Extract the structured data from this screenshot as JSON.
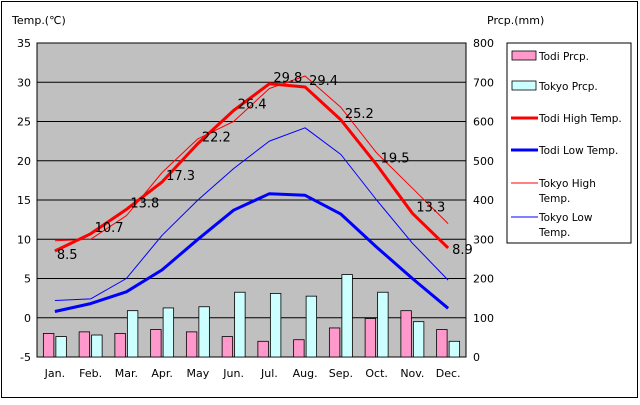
{
  "chart_data": {
    "type": "bar+line",
    "left_axis_label": "Temp.(℃)",
    "right_axis_label": "Prcp.(mm)",
    "categories": [
      "Jan.",
      "Feb.",
      "Mar.",
      "Apr.",
      "May",
      "Jun.",
      "Jul.",
      "Aug.",
      "Sep.",
      "Oct.",
      "Nov.",
      "Dec."
    ],
    "left_ylim": [
      -5,
      35
    ],
    "left_ticks": [
      "35",
      "30",
      "25",
      "20",
      "15",
      "10",
      "5",
      "0",
      "-5"
    ],
    "right_ylim": [
      0,
      800
    ],
    "right_ticks": [
      "800",
      "700",
      "600",
      "500",
      "400",
      "300",
      "200",
      "100",
      "0"
    ],
    "grid": "horizontal",
    "legend_position": "right",
    "series": [
      {
        "name": "Todi Prcp.",
        "kind": "bar",
        "axis": "right",
        "color": "#ff99cc",
        "values": [
          60,
          64,
          60,
          70,
          64,
          52,
          40,
          44,
          74,
          98,
          118,
          70
        ]
      },
      {
        "name": "Tokyo Prcp.",
        "kind": "bar",
        "axis": "right",
        "color": "#ccffff",
        "values": [
          52,
          56,
          118,
          125,
          128,
          165,
          162,
          155,
          210,
          165,
          90,
          40
        ]
      },
      {
        "name": "Todi High Temp.",
        "kind": "line",
        "axis": "left",
        "color": "#ff0000",
        "width": 3,
        "values": [
          8.5,
          10.7,
          13.8,
          17.3,
          22.2,
          26.4,
          29.8,
          29.4,
          25.2,
          19.5,
          13.3,
          8.9
        ]
      },
      {
        "name": "Todi Low Temp.",
        "kind": "line",
        "axis": "left",
        "color": "#0000ff",
        "width": 3,
        "values": [
          0.8,
          1.8,
          3.3,
          6.1,
          10.0,
          13.7,
          15.8,
          15.6,
          13.2,
          9.0,
          5.0,
          1.2
        ]
      },
      {
        "name": "Tokyo High Temp.",
        "kind": "line",
        "axis": "left",
        "color": "#ff0000",
        "width": 1,
        "values": [
          9.8,
          10.0,
          13.0,
          18.5,
          22.8,
          25.0,
          29.2,
          30.8,
          26.8,
          21.0,
          16.5,
          12.0
        ]
      },
      {
        "name": "Tokyo Low Temp.",
        "kind": "line",
        "axis": "left",
        "color": "#0000ff",
        "width": 1,
        "values": [
          2.2,
          2.4,
          5.0,
          10.5,
          15.0,
          19.0,
          22.5,
          24.2,
          20.8,
          15.0,
          9.5,
          4.8
        ]
      }
    ],
    "data_labels": {
      "series": "Todi High Temp.",
      "labels": [
        "8.5",
        "10.7",
        "13.8",
        "17.3",
        "22.2",
        "26.4",
        "29.8",
        "29.4",
        "25.2",
        "19.5",
        "13.3",
        "8.9"
      ]
    },
    "legend": [
      {
        "lines": [
          "Todi Prcp."
        ],
        "kind": "bar",
        "color": "#ff99cc"
      },
      {
        "lines": [
          "Tokyo Prcp."
        ],
        "kind": "bar",
        "color": "#ccffff"
      },
      {
        "lines": [
          "Todi High Temp."
        ],
        "kind": "line",
        "color": "#ff0000",
        "width": 3
      },
      {
        "lines": [
          "Todi Low Temp."
        ],
        "kind": "line",
        "color": "#0000ff",
        "width": 3
      },
      {
        "lines": [
          "Tokyo High",
          "Temp."
        ],
        "kind": "line",
        "color": "#ff0000",
        "width": 1
      },
      {
        "lines": [
          "Tokyo Low",
          "Temp."
        ],
        "kind": "line",
        "color": "#0000ff",
        "width": 1
      }
    ],
    "plot_background": "#c0c0c0"
  }
}
